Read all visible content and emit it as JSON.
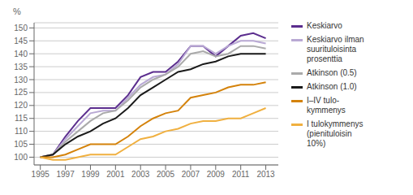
{
  "chart_data": {
    "type": "line",
    "ylabel": "%",
    "x": [
      1995,
      1996,
      1997,
      1998,
      1999,
      2000,
      2001,
      2002,
      2003,
      2004,
      2005,
      2006,
      2007,
      2008,
      2009,
      2010,
      2011,
      2012,
      2013
    ],
    "series": [
      {
        "name": "Keskiarvo",
        "color": "#5b2d8e",
        "values": [
          100,
          101,
          108,
          114,
          119,
          119,
          119,
          124,
          131,
          133,
          133,
          137,
          143,
          143,
          139,
          143,
          147,
          148,
          146
        ]
      },
      {
        "name": "Keskiarvo ilman\nsuurituloisinta\nprosenttia",
        "color": "#b9a9d4",
        "values": [
          100,
          101,
          107,
          112,
          117,
          118,
          118,
          123,
          128,
          131,
          132,
          136,
          143,
          143,
          140,
          143,
          145,
          145,
          144
        ]
      },
      {
        "name": "Atkinson (0.5)",
        "color": "#aaaaaa",
        "values": [
          100,
          101,
          106,
          110,
          114,
          117,
          118,
          122,
          127,
          130,
          132,
          135,
          140,
          141,
          139,
          140,
          143,
          143,
          142
        ]
      },
      {
        "name": "Atkinson (1.0)",
        "color": "#1a1a1a",
        "values": [
          100,
          101,
          105,
          108,
          110,
          113,
          115,
          119,
          124,
          127,
          130,
          133,
          134,
          136,
          137,
          139,
          140,
          140,
          140
        ]
      },
      {
        "name": "I–IV tulo-\nkymmenys",
        "color": "#d4820a",
        "values": [
          100,
          100,
          101,
          103,
          105,
          105,
          105,
          108,
          112,
          115,
          117,
          118,
          123,
          124,
          125,
          127,
          128,
          128,
          129
        ]
      },
      {
        "name": "I tulokymmenys\n(pienituloisin\n10%)",
        "color": "#f0b040",
        "values": [
          100,
          99,
          99,
          100,
          101,
          101,
          101,
          104,
          107,
          108,
          110,
          111,
          113,
          114,
          114,
          115,
          115,
          117,
          119
        ]
      }
    ],
    "xlim": [
      1994.5,
      2014.0
    ],
    "xticks": [
      1995,
      1997,
      1999,
      2001,
      2003,
      2005,
      2007,
      2009,
      2011,
      2013
    ],
    "ylim": [
      97,
      152
    ],
    "yticks": [
      100,
      105,
      110,
      115,
      120,
      125,
      130,
      135,
      140,
      145,
      150
    ],
    "grid": "y",
    "legend": "right"
  }
}
